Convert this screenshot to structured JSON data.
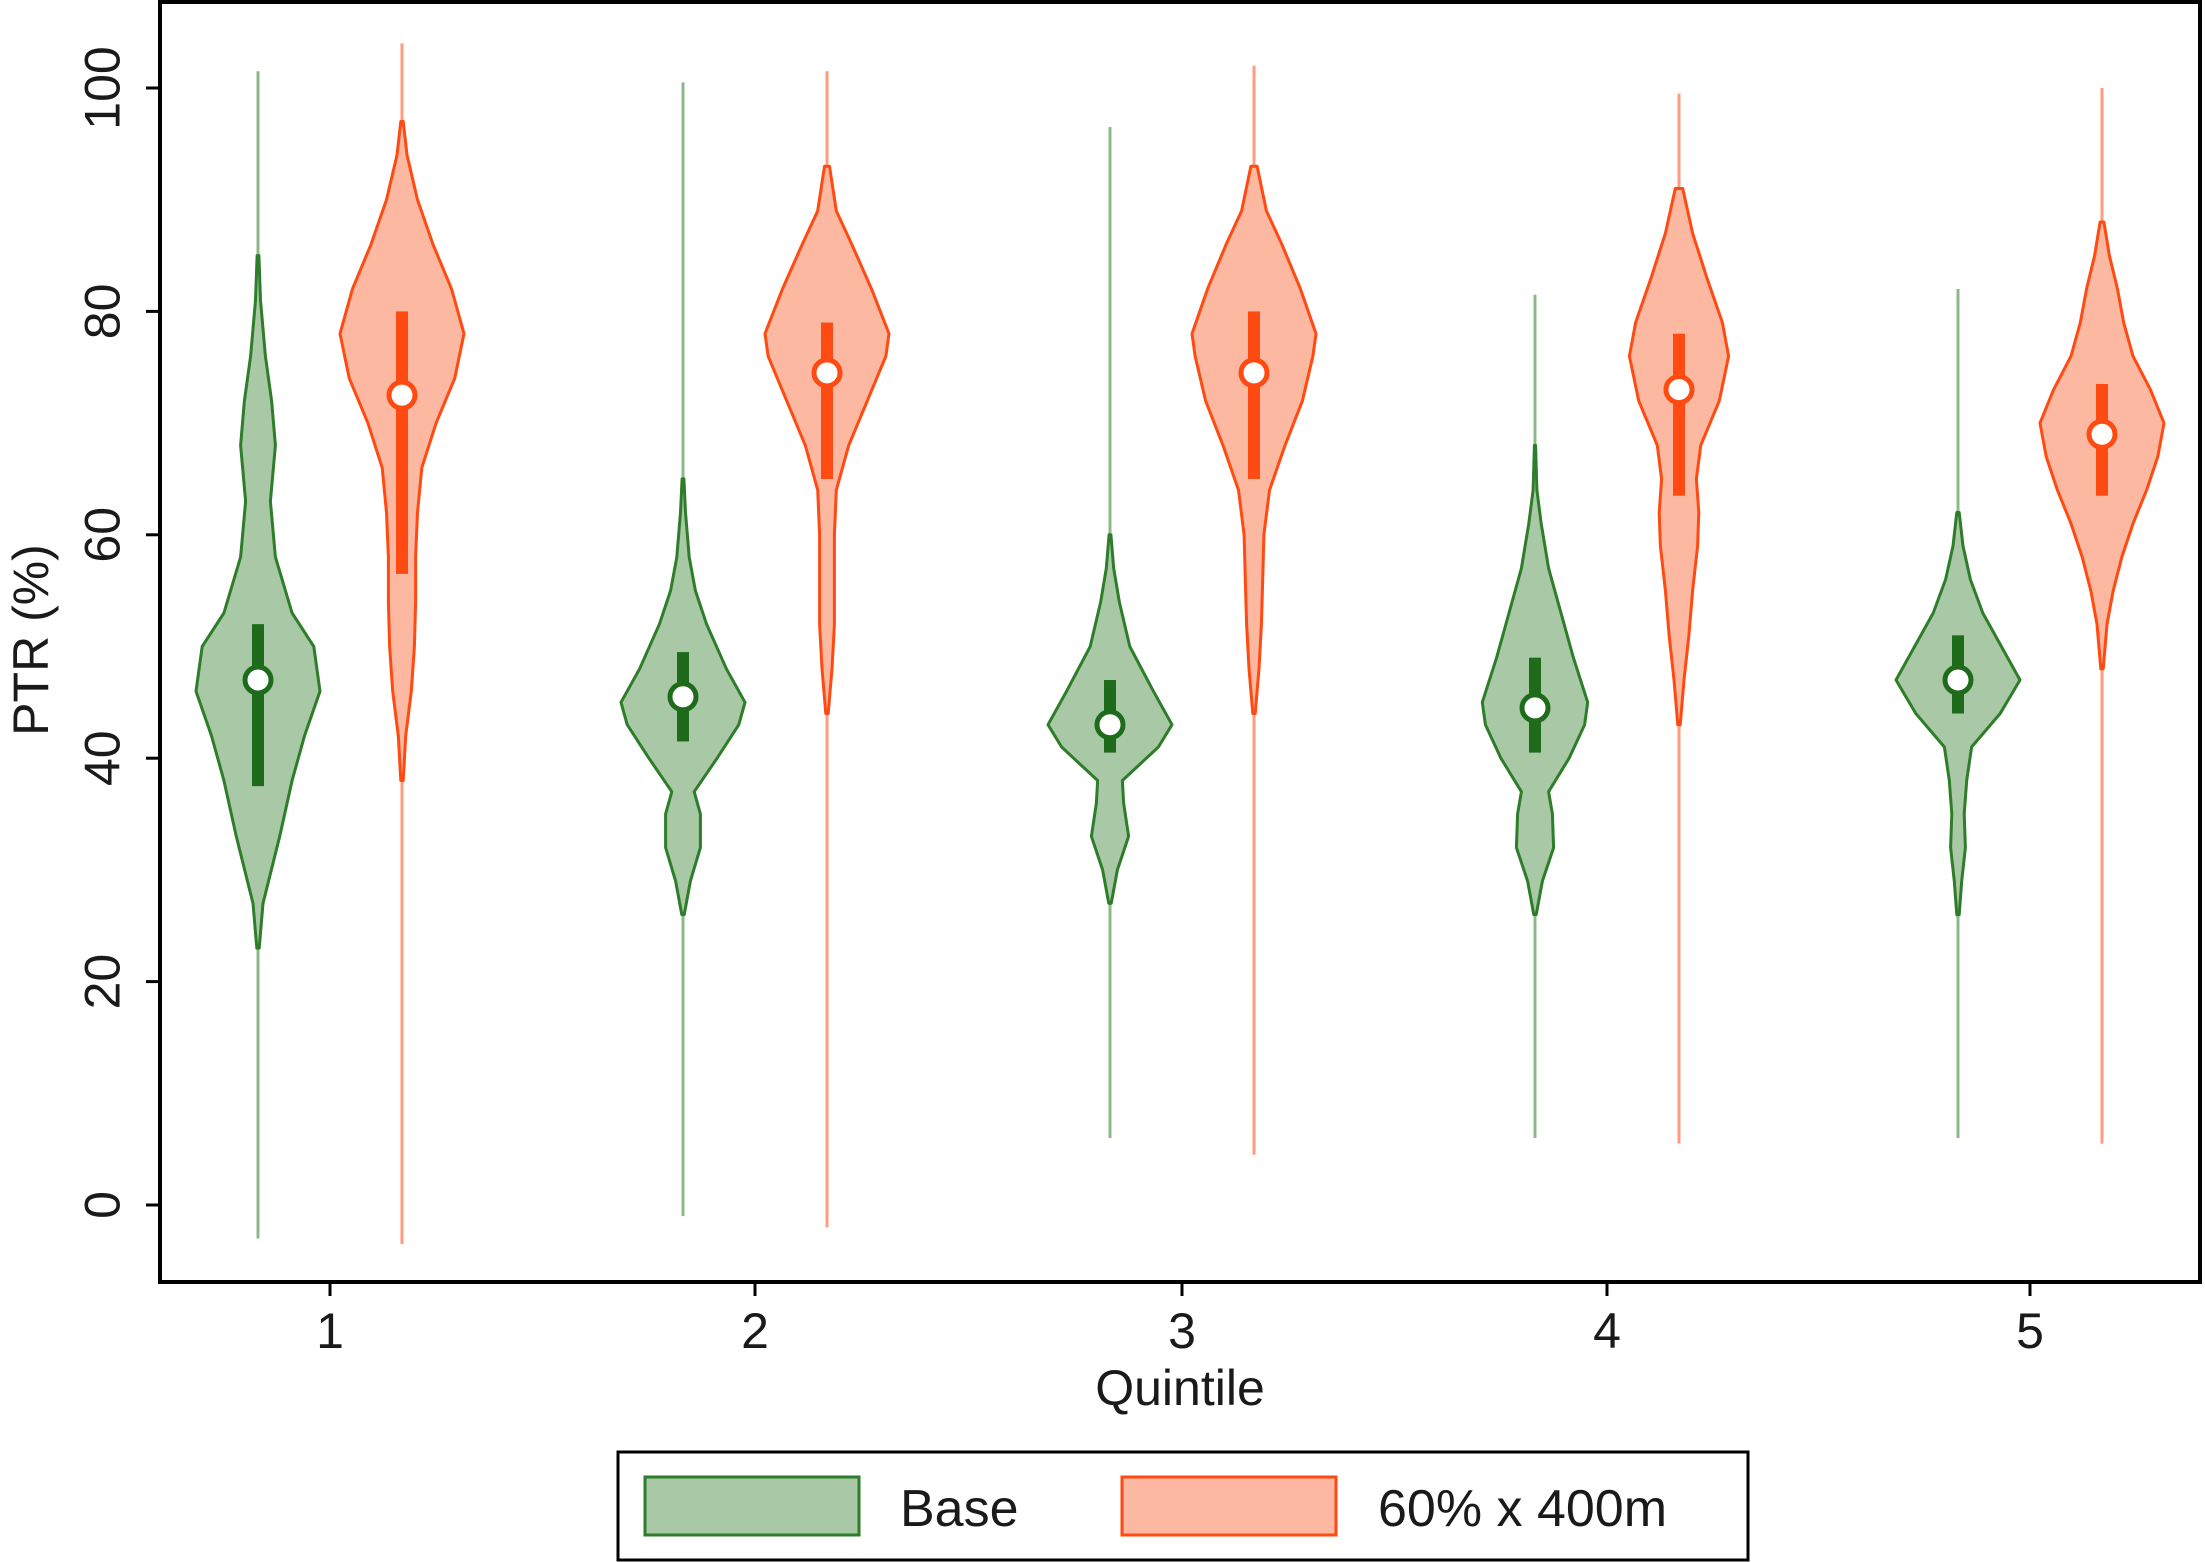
{
  "chart_data": {
    "type": "violin",
    "xlabel": "Quintile",
    "ylabel": "PTR (%)",
    "categories": [
      "1",
      "2",
      "3",
      "4",
      "5"
    ],
    "yticks": [
      "0",
      "20",
      "40",
      "60",
      "80",
      "100"
    ],
    "ylim": [
      -7,
      107
    ],
    "grid": false,
    "legend_position": "bottom",
    "series": [
      {
        "name": "Base",
        "fill_color": "#a9c8a5",
        "line_color": "#2e7d2a",
        "box_color": "#1f6b1c",
        "violins": [
          {
            "q": "1",
            "median": 47,
            "q1": 37.5,
            "q3": 52,
            "min": -3,
            "max": 101.5,
            "profile": [
              [
                23,
                0.02
              ],
              [
                27,
                0.08
              ],
              [
                33,
                0.35
              ],
              [
                38,
                0.55
              ],
              [
                42,
                0.75
              ],
              [
                46,
                1.0
              ],
              [
                50,
                0.9
              ],
              [
                53,
                0.55
              ],
              [
                58,
                0.28
              ],
              [
                63,
                0.2
              ],
              [
                68,
                0.28
              ],
              [
                72,
                0.22
              ],
              [
                76,
                0.12
              ],
              [
                81,
                0.04
              ],
              [
                85,
                0.015
              ]
            ]
          },
          {
            "q": "2",
            "median": 45.5,
            "q1": 41.5,
            "q3": 49.5,
            "min": -1,
            "max": 100.5,
            "profile": [
              [
                26,
                0.02
              ],
              [
                29,
                0.12
              ],
              [
                32,
                0.28
              ],
              [
                35,
                0.28
              ],
              [
                37,
                0.18
              ],
              [
                40,
                0.55
              ],
              [
                43,
                0.9
              ],
              [
                45,
                1.0
              ],
              [
                48,
                0.7
              ],
              [
                52,
                0.38
              ],
              [
                55,
                0.2
              ],
              [
                58,
                0.1
              ],
              [
                62,
                0.04
              ],
              [
                65,
                0.015
              ]
            ]
          },
          {
            "q": "3",
            "median": 43,
            "q1": 40.5,
            "q3": 47,
            "min": 6,
            "max": 96.5,
            "profile": [
              [
                27,
                0.02
              ],
              [
                30,
                0.12
              ],
              [
                33,
                0.3
              ],
              [
                36,
                0.22
              ],
              [
                38,
                0.2
              ],
              [
                41,
                0.78
              ],
              [
                43,
                1.0
              ],
              [
                46,
                0.7
              ],
              [
                50,
                0.32
              ],
              [
                54,
                0.15
              ],
              [
                57,
                0.06
              ],
              [
                60,
                0.015
              ]
            ]
          },
          {
            "q": "4",
            "median": 44.5,
            "q1": 40.5,
            "q3": 49,
            "min": 6,
            "max": 81.5,
            "profile": [
              [
                26,
                0.02
              ],
              [
                29,
                0.12
              ],
              [
                32,
                0.3
              ],
              [
                35,
                0.28
              ],
              [
                37,
                0.22
              ],
              [
                40,
                0.55
              ],
              [
                43,
                0.8
              ],
              [
                45,
                0.85
              ],
              [
                49,
                0.62
              ],
              [
                53,
                0.42
              ],
              [
                57,
                0.22
              ],
              [
                61,
                0.1
              ],
              [
                64,
                0.03
              ],
              [
                68,
                0.01
              ]
            ]
          },
          {
            "q": "5",
            "median": 47,
            "q1": 44,
            "q3": 51,
            "min": 6,
            "max": 82,
            "profile": [
              [
                26,
                0.02
              ],
              [
                29,
                0.06
              ],
              [
                32,
                0.12
              ],
              [
                35,
                0.1
              ],
              [
                38,
                0.14
              ],
              [
                41,
                0.22
              ],
              [
                44,
                0.68
              ],
              [
                47,
                1.0
              ],
              [
                50,
                0.7
              ],
              [
                53,
                0.4
              ],
              [
                56,
                0.2
              ],
              [
                59,
                0.08
              ],
              [
                62,
                0.02
              ]
            ]
          }
        ]
      },
      {
        "name": "60% x 400m",
        "fill_color": "#fcb8a0",
        "line_color": "#ff4a12",
        "box_color": "#ff4a12",
        "violins": [
          {
            "q": "1",
            "median": 72.5,
            "q1": 56.5,
            "q3": 80,
            "min": -3.5,
            "max": 104,
            "profile": [
              [
                38,
                0.02
              ],
              [
                42,
                0.06
              ],
              [
                46,
                0.15
              ],
              [
                50,
                0.2
              ],
              [
                54,
                0.22
              ],
              [
                58,
                0.22
              ],
              [
                62,
                0.25
              ],
              [
                66,
                0.32
              ],
              [
                70,
                0.55
              ],
              [
                74,
                0.85
              ],
              [
                78,
                1.0
              ],
              [
                82,
                0.8
              ],
              [
                86,
                0.5
              ],
              [
                90,
                0.25
              ],
              [
                94,
                0.08
              ],
              [
                97,
                0.02
              ]
            ]
          },
          {
            "q": "2",
            "median": 74.5,
            "q1": 65,
            "q3": 79,
            "min": -2,
            "max": 101.5,
            "profile": [
              [
                44,
                0.02
              ],
              [
                48,
                0.08
              ],
              [
                52,
                0.12
              ],
              [
                56,
                0.12
              ],
              [
                60,
                0.12
              ],
              [
                64,
                0.15
              ],
              [
                68,
                0.35
              ],
              [
                72,
                0.65
              ],
              [
                76,
                0.95
              ],
              [
                78,
                1.0
              ],
              [
                82,
                0.72
              ],
              [
                86,
                0.4
              ],
              [
                89,
                0.15
              ],
              [
                93,
                0.04
              ]
            ]
          },
          {
            "q": "3",
            "median": 74.5,
            "q1": 65,
            "q3": 80,
            "min": 4.5,
            "max": 102,
            "profile": [
              [
                44,
                0.02
              ],
              [
                48,
                0.08
              ],
              [
                52,
                0.12
              ],
              [
                56,
                0.14
              ],
              [
                60,
                0.16
              ],
              [
                64,
                0.25
              ],
              [
                68,
                0.5
              ],
              [
                72,
                0.78
              ],
              [
                76,
                0.95
              ],
              [
                78,
                1.0
              ],
              [
                82,
                0.75
              ],
              [
                86,
                0.45
              ],
              [
                89,
                0.2
              ],
              [
                93,
                0.05
              ]
            ]
          },
          {
            "q": "4",
            "median": 73,
            "q1": 63.5,
            "q3": 78,
            "min": 5.5,
            "max": 99.5,
            "profile": [
              [
                43,
                0.02
              ],
              [
                47,
                0.08
              ],
              [
                51,
                0.16
              ],
              [
                55,
                0.22
              ],
              [
                59,
                0.3
              ],
              [
                62,
                0.32
              ],
              [
                65,
                0.28
              ],
              [
                68,
                0.35
              ],
              [
                72,
                0.65
              ],
              [
                76,
                0.8
              ],
              [
                79,
                0.7
              ],
              [
                83,
                0.45
              ],
              [
                87,
                0.22
              ],
              [
                91,
                0.06
              ]
            ]
          },
          {
            "q": "5",
            "median": 69,
            "q1": 63.5,
            "q3": 73.5,
            "min": 5.5,
            "max": 100,
            "profile": [
              [
                48,
                0.02
              ],
              [
                52,
                0.08
              ],
              [
                55,
                0.18
              ],
              [
                58,
                0.32
              ],
              [
                61,
                0.5
              ],
              [
                64,
                0.72
              ],
              [
                67,
                0.9
              ],
              [
                70,
                1.0
              ],
              [
                73,
                0.78
              ],
              [
                76,
                0.5
              ],
              [
                79,
                0.35
              ],
              [
                82,
                0.25
              ],
              [
                85,
                0.12
              ],
              [
                88,
                0.03
              ]
            ]
          }
        ]
      }
    ]
  },
  "legend": {
    "items": [
      {
        "label": "Base"
      },
      {
        "label": "60% x 400m"
      }
    ]
  }
}
